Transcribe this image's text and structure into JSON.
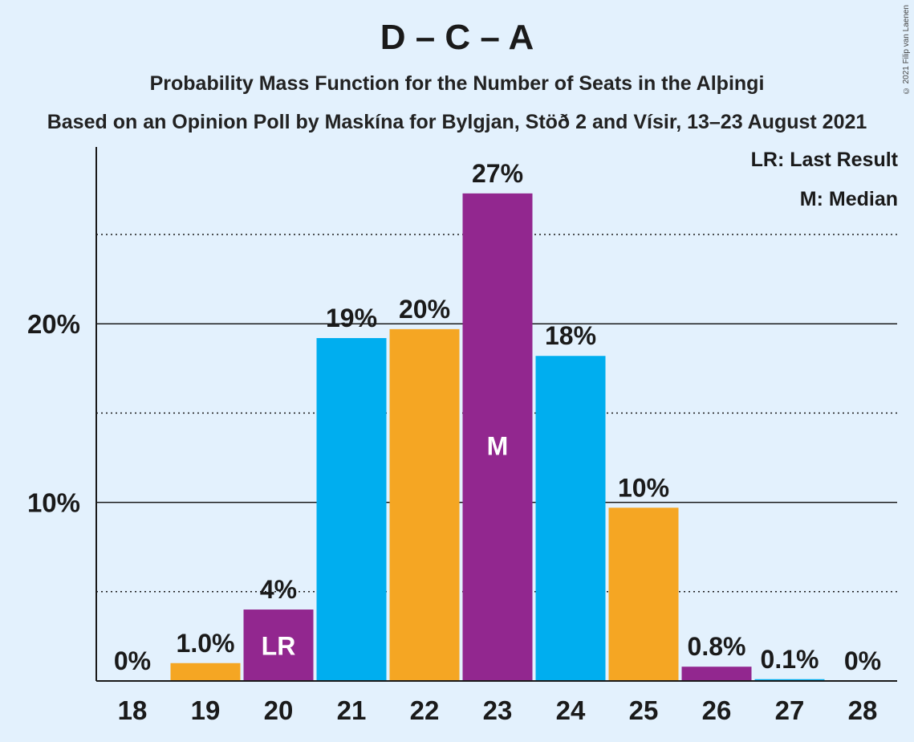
{
  "header": {
    "title": "D – C – A",
    "subtitle": "Probability Mass Function for the Number of Seats in the Alþingi",
    "subtitle2": "Based on an Opinion Poll by Maskína for Bylgjan, Stöð 2 and Vísir, 13–23 August 2021",
    "copyright": "© 2021 Filip van Laenen"
  },
  "legend": {
    "last_result": "LR: Last Result",
    "median": "M: Median"
  },
  "colors": {
    "background": "#e3f1fd",
    "blue": "#00aeef",
    "orange": "#f5a623",
    "purple": "#92278f"
  },
  "chart_data": {
    "type": "bar",
    "categories": [
      "18",
      "19",
      "20",
      "21",
      "22",
      "23",
      "24",
      "25",
      "26",
      "27",
      "28"
    ],
    "values": [
      0,
      1.0,
      4.0,
      19.2,
      19.7,
      27.3,
      18.2,
      9.7,
      0.8,
      0.1,
      0
    ],
    "labels": [
      "0%",
      "1.0%",
      "4%",
      "19%",
      "20%",
      "27%",
      "18%",
      "10%",
      "0.8%",
      "0.1%",
      "0%"
    ],
    "bar_colors": [
      "purple",
      "orange",
      "purple",
      "blue",
      "orange",
      "purple",
      "blue",
      "orange",
      "purple",
      "blue",
      "orange"
    ],
    "markers": {
      "20": "LR",
      "23": "M"
    },
    "ytick_labels": [
      "10%",
      "20%"
    ],
    "yticks": [
      10,
      20
    ],
    "minor_gridlines": [
      5,
      15,
      25
    ],
    "ylim": [
      0,
      30
    ],
    "ylabel": "",
    "xlabel": "",
    "grid": true,
    "legend_position": "top-right"
  }
}
